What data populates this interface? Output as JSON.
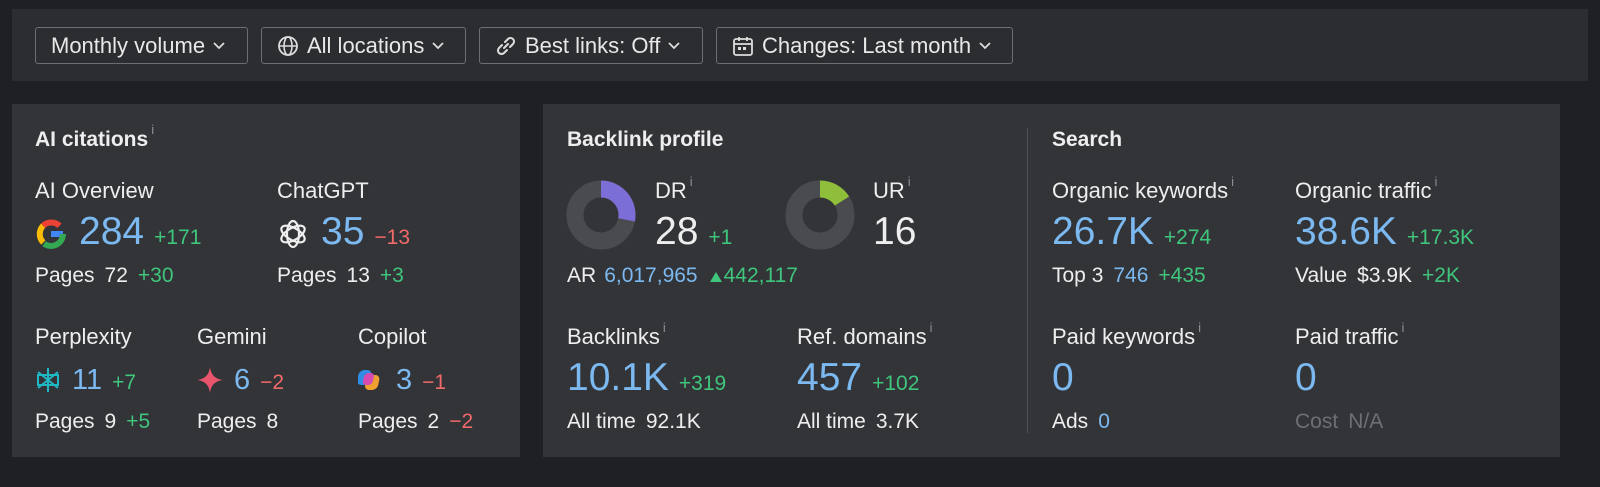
{
  "filters": [
    "Monthly volume",
    "All locations",
    "Best links: Off",
    "Changes: Last month"
  ],
  "info_mark": "i",
  "ai_citations": {
    "title": "AI citations",
    "sources": [
      {
        "name": "AI Overview",
        "count": 284,
        "change": "+171",
        "pages_label": "Pages",
        "pages": 72,
        "pages_change": "+30"
      },
      {
        "name": "ChatGPT",
        "count": 35,
        "change": "−13",
        "pages_label": "Pages",
        "pages": 13,
        "pages_change": "+3"
      },
      {
        "name": "Perplexity",
        "count": 11,
        "change": "+7",
        "pages_label": "Pages",
        "pages": 9,
        "pages_change": "+5"
      },
      {
        "name": "Gemini",
        "count": 6,
        "change": "−2",
        "pages_label": "Pages",
        "pages": 8
      },
      {
        "name": "Copilot",
        "count": 3,
        "change": "−1",
        "pages_label": "Pages",
        "pages": 2,
        "pages_change": "−2"
      }
    ]
  },
  "backlink_profile": {
    "title": "Backlink profile",
    "rating_range": [
      0,
      100
    ],
    "dr": {
      "label": "DR",
      "value": 28,
      "change": "+1",
      "color": "#7b6ed6"
    },
    "ur": {
      "label": "UR",
      "value": 16,
      "color": "#8fbf3a"
    },
    "ar": {
      "label": "AR",
      "value": "6,017,965",
      "change": "442,117"
    },
    "backlinks": {
      "label": "Backlinks",
      "value": "10.1K",
      "change": "+319",
      "all_time_label": "All time",
      "all_time": "92.1K"
    },
    "ref_domains": {
      "label": "Ref. domains",
      "value": "457",
      "change": "+102",
      "all_time_label": "All time",
      "all_time": "3.7K"
    }
  },
  "search": {
    "title": "Search",
    "organic_keywords": {
      "label": "Organic keywords",
      "value": "26.7K",
      "change": "+274",
      "sub_label": "Top 3",
      "sub_value": 746,
      "sub_change": "+435"
    },
    "organic_traffic": {
      "label": "Organic traffic",
      "value": "38.6K",
      "change": "+17.3K",
      "sub_label": "Value",
      "sub_value": "$3.9K",
      "sub_change": "+2K"
    },
    "paid_keywords": {
      "label": "Paid keywords",
      "value": 0,
      "sub_label": "Ads",
      "sub_value": 0
    },
    "paid_traffic": {
      "label": "Paid traffic",
      "value": 0,
      "sub_label": "Cost",
      "sub_value": "N/A"
    }
  }
}
